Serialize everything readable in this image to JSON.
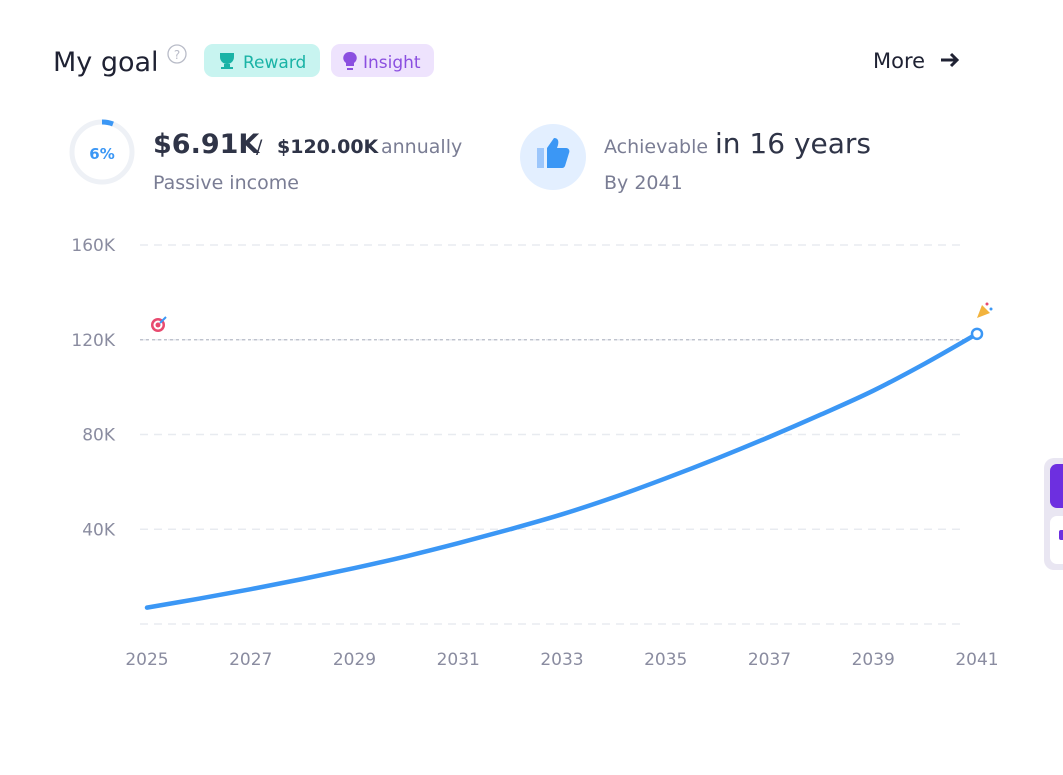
{
  "header": {
    "title": "My goal",
    "badges": [
      "Reward",
      "Insight"
    ],
    "more": "More"
  },
  "stats": {
    "progress": "6%",
    "current": "$6.91K",
    "separator": "/",
    "target": "$120.00K",
    "period": "annually",
    "caption": "Passive income",
    "status": "Achievable",
    "duration": "in 16 years",
    "by": "By 2041"
  },
  "chart_data": {
    "type": "line",
    "color": "#3b97f5",
    "x": [
      2025,
      2026,
      2027,
      2028,
      2029,
      2030,
      2031,
      2032,
      2033,
      2034,
      2035,
      2036,
      2037,
      2038,
      2039,
      2040,
      2041
    ],
    "values": [
      6910,
      10700,
      14700,
      19000,
      23600,
      28600,
      34100,
      40000,
      46300,
      53500,
      61500,
      70000,
      79000,
      88500,
      98500,
      110000,
      122500
    ],
    "target": 120000,
    "xlim": [
      2025,
      2041
    ],
    "xticks": [
      2025,
      2027,
      2029,
      2031,
      2033,
      2035,
      2037,
      2039,
      2041
    ],
    "ylim": [
      0,
      160000
    ],
    "yticks": [
      {
        "value": 40000,
        "label": "40K"
      },
      {
        "value": 80000,
        "label": "80K"
      },
      {
        "value": 120000,
        "label": "120K"
      },
      {
        "value": 160000,
        "label": "160K"
      }
    ],
    "grid": true
  }
}
